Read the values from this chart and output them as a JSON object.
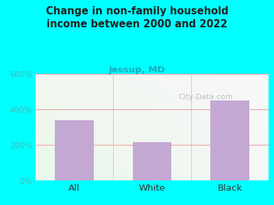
{
  "title": "Change in non-family household\nincome between 2000 and 2022",
  "subtitle": "Jessup, MD",
  "categories": [
    "All",
    "White",
    "Black"
  ],
  "values": [
    340,
    215,
    450
  ],
  "bar_color": "#c4a8d4",
  "title_color": "#222222",
  "subtitle_color": "#1aabbb",
  "ytick_color": "#44bbbb",
  "xlabel_color": "#333333",
  "background_color": "#00ffff",
  "ylim": [
    0,
    600
  ],
  "yticks": [
    0,
    200,
    400,
    600
  ],
  "ytick_labels": [
    "0%",
    "200%",
    "400%",
    "600%"
  ],
  "watermark": "City-Data.com",
  "grid_color": "#f0a0a0",
  "figsize": [
    4.0,
    3.0
  ],
  "dpi": 100,
  "title_fontsize": 10.5,
  "subtitle_fontsize": 9.5
}
